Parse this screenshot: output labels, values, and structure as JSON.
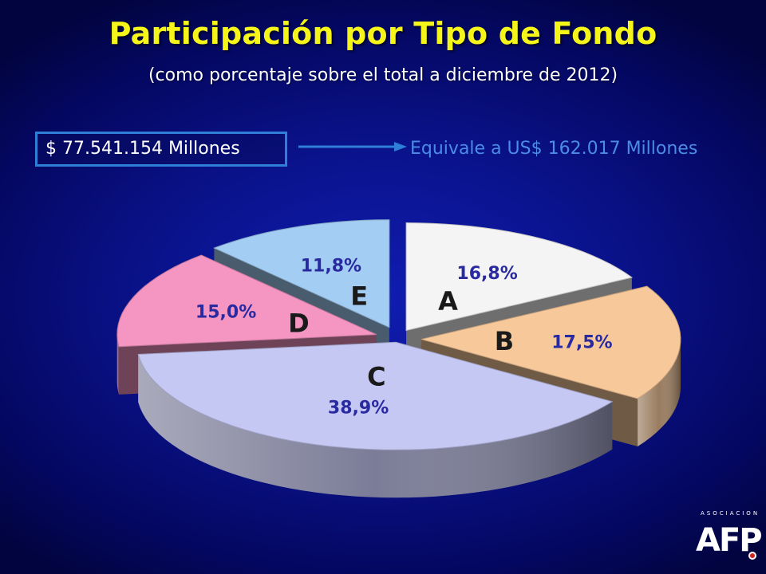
{
  "header": {
    "title": "Participación por Tipo de Fondo",
    "subtitle": "(como porcentaje sobre el total a diciembre de 2012)"
  },
  "summary": {
    "amount": "$ 77.541.154 Millones",
    "equivalent": "Equivale a US$ 162.017 Millones"
  },
  "logo": {
    "small": "ASOCIACION",
    "main": "AFP"
  },
  "chart_data": {
    "type": "pie",
    "title": "Participación por Tipo de Fondo",
    "unit": "%",
    "categories": [
      "A",
      "B",
      "C",
      "D",
      "E"
    ],
    "values": [
      16.8,
      17.5,
      38.9,
      15.0,
      11.8
    ],
    "labels": [
      "16,8%",
      "17,5%",
      "38,9%",
      "15,0%",
      "11,8%"
    ],
    "exploded": true,
    "three_d": true,
    "colors": {
      "A": "#f4f4f4",
      "B": "#f6c89a",
      "C": "#c6c8f4",
      "D": "#f495c2",
      "E": "#a3cdf3"
    },
    "label_color": "#2a2aa0",
    "category_label_color": "#1a1a1a"
  }
}
